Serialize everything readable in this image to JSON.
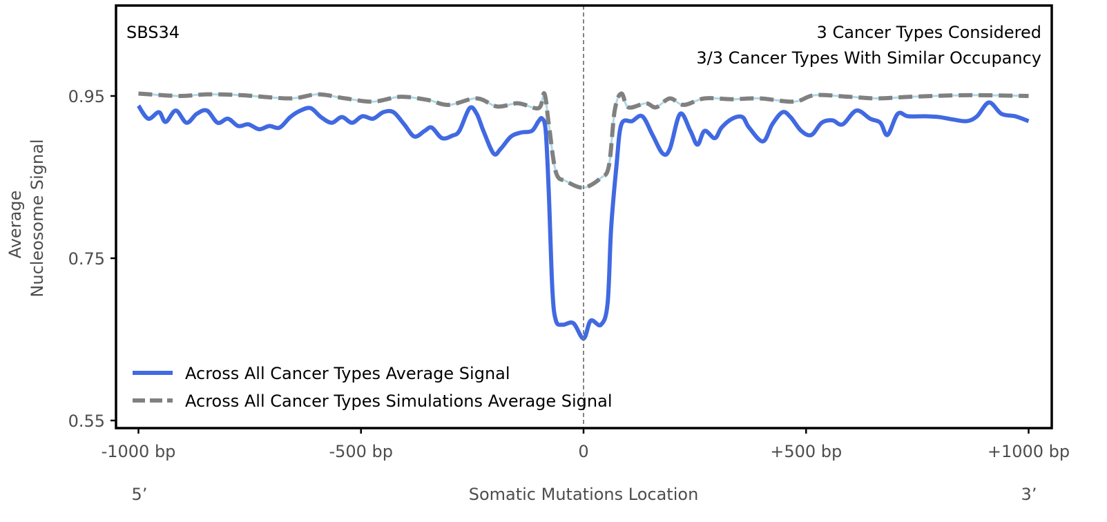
{
  "chart_data": {
    "type": "line",
    "title": "",
    "signature": "SBS34",
    "annotations": [
      "3 Cancer Types Considered",
      "3/3 Cancer Types With Similar Occupancy"
    ],
    "xlabel": "Somatic Mutations Location",
    "ylabel_lines": [
      "Average",
      "Nucleosome Signal"
    ],
    "x_end_labels": [
      "5’",
      "3’"
    ],
    "xlim": [
      -1050,
      1050
    ],
    "ylim": [
      0.54,
      1.061
    ],
    "xticks": [
      -1000,
      -500,
      0,
      500,
      1000
    ],
    "xtick_labels": [
      "-1000 bp",
      "-500 bp",
      "0",
      "+500 bp",
      "+1000 bp"
    ],
    "yticks": [
      0.95,
      0.75,
      0.55
    ],
    "ytick_labels": [
      "0.95",
      "0.75",
      "0.55"
    ],
    "grid": false,
    "legend_placement": "bottom-left",
    "series": [
      {
        "name": "Across All Cancer Types Average Signal",
        "color": "#4169e1",
        "style": "solid",
        "x": [
          -1000,
          -978,
          -954,
          -939,
          -916,
          -892,
          -869,
          -846,
          -822,
          -799,
          -776,
          -753,
          -729,
          -706,
          -683,
          -659,
          -636,
          -613,
          -590,
          -566,
          -543,
          -520,
          -497,
          -473,
          -450,
          -427,
          -403,
          -380,
          -357,
          -341,
          -318,
          -295,
          -279,
          -256,
          -240,
          -225,
          -202,
          -186,
          -163,
          -140,
          -116,
          -101,
          -93,
          -85,
          -78,
          -70,
          -62,
          -47,
          -23,
          0,
          16,
          39,
          54,
          62,
          74,
          85,
          109,
          132,
          155,
          178,
          194,
          217,
          240,
          256,
          272,
          295,
          310,
          334,
          357,
          372,
          403,
          424,
          447,
          465,
          489,
          512,
          535,
          559,
          582,
          613,
          644,
          667,
          683,
          706,
          729,
          768,
          799,
          830,
          861,
          884,
          911,
          939,
          970,
          1000
        ],
        "y": [
          0.938,
          0.922,
          0.93,
          0.918,
          0.932,
          0.917,
          0.928,
          0.932,
          0.917,
          0.922,
          0.913,
          0.915,
          0.909,
          0.913,
          0.911,
          0.924,
          0.932,
          0.935,
          0.924,
          0.917,
          0.924,
          0.917,
          0.925,
          0.922,
          0.93,
          0.93,
          0.915,
          0.9,
          0.907,
          0.911,
          0.898,
          0.901,
          0.907,
          0.935,
          0.928,
          0.907,
          0.879,
          0.885,
          0.9,
          0.905,
          0.907,
          0.919,
          0.922,
          0.907,
          0.83,
          0.711,
          0.673,
          0.668,
          0.67,
          0.651,
          0.673,
          0.668,
          0.694,
          0.787,
          0.864,
          0.915,
          0.919,
          0.925,
          0.902,
          0.879,
          0.885,
          0.928,
          0.907,
          0.89,
          0.907,
          0.898,
          0.911,
          0.922,
          0.924,
          0.911,
          0.894,
          0.915,
          0.93,
          0.924,
          0.907,
          0.902,
          0.917,
          0.92,
          0.915,
          0.932,
          0.922,
          0.917,
          0.902,
          0.928,
          0.925,
          0.925,
          0.924,
          0.921,
          0.919,
          0.925,
          0.942,
          0.928,
          0.925,
          0.919
        ]
      },
      {
        "name": "Across All Cancer Types Simulations Average Signal",
        "color": "#808080",
        "style": "dashed",
        "x": [
          -1000,
          -908,
          -846,
          -768,
          -659,
          -597,
          -535,
          -473,
          -411,
          -349,
          -303,
          -240,
          -194,
          -147,
          -101,
          -88,
          -78,
          -62,
          -39,
          0,
          39,
          57,
          70,
          85,
          101,
          140,
          163,
          194,
          225,
          272,
          334,
          396,
          473,
          520,
          597,
          659,
          737,
          861,
          1000
        ],
        "y": [
          0.953,
          0.95,
          0.952,
          0.951,
          0.947,
          0.952,
          0.947,
          0.943,
          0.949,
          0.945,
          0.939,
          0.947,
          0.937,
          0.941,
          0.935,
          0.953,
          0.915,
          0.856,
          0.845,
          0.837,
          0.849,
          0.864,
          0.932,
          0.953,
          0.936,
          0.941,
          0.936,
          0.947,
          0.939,
          0.947,
          0.946,
          0.947,
          0.943,
          0.951,
          0.949,
          0.947,
          0.949,
          0.951,
          0.95
        ]
      }
    ]
  }
}
